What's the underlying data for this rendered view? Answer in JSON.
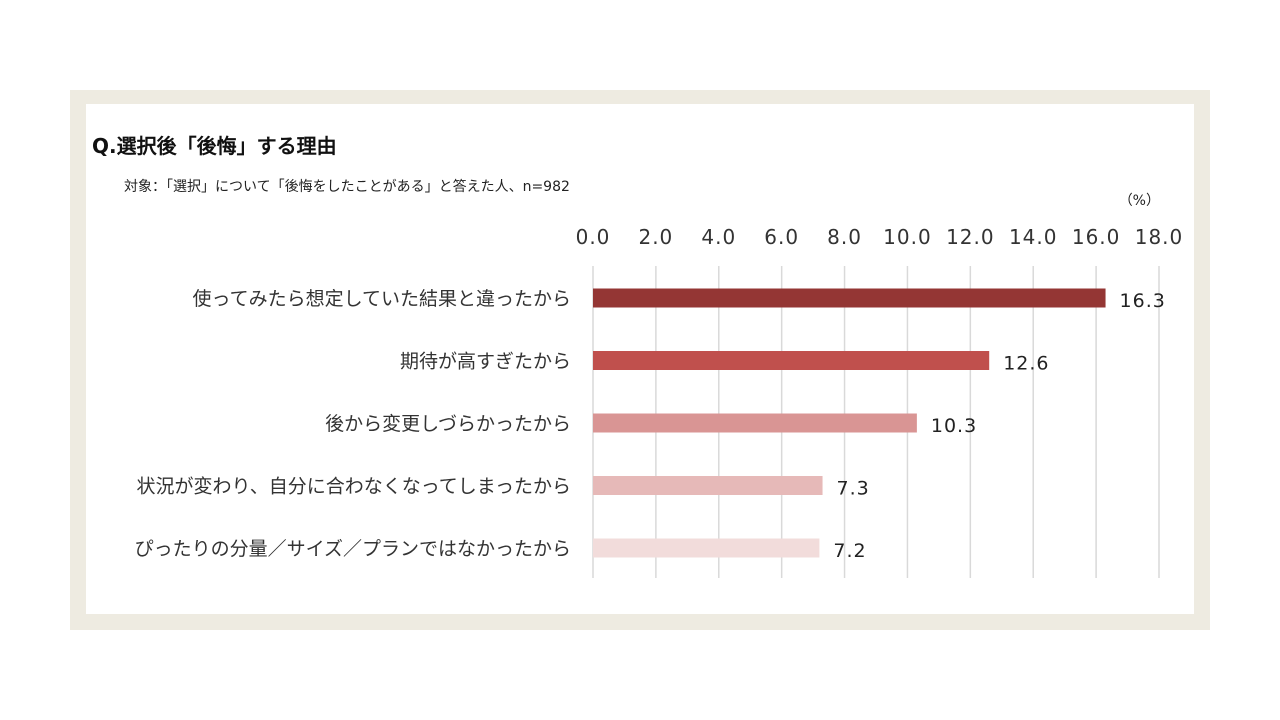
{
  "chart_data": {
    "type": "bar",
    "orientation": "horizontal",
    "title": "Q.選択後「後悔」する理由",
    "subtitle": "対象：「選択」について「後悔をしたことがある」と答えた人、n=982",
    "unit_label": "（%）",
    "categories": [
      "使ってみたら想定していた結果と違ったから",
      "期待が高すぎたから",
      "後から変更しづらかったから",
      "状況が変わり、自分に合わなくなってしまったから",
      "ぴったりの分量／サイズ／プランではなかったから"
    ],
    "values": [
      16.3,
      12.6,
      10.3,
      7.3,
      7.2
    ],
    "value_labels": [
      "16.3",
      "12.6",
      "10.3",
      "7.3",
      "7.2"
    ],
    "xlim": [
      0,
      18
    ],
    "ticks": [
      "0.0",
      "2.0",
      "4.0",
      "6.0",
      "8.0",
      "10.0",
      "12.0",
      "14.0",
      "16.0",
      "18.0"
    ],
    "tick_values": [
      0,
      2,
      4,
      6,
      8,
      10,
      12,
      14,
      16,
      18
    ],
    "bar_colors": [
      "#943634",
      "#c0504d",
      "#d99594",
      "#e6b9b8",
      "#f2dcdb"
    ],
    "grid": true,
    "axis_position": "top"
  },
  "colors": {
    "frame": "#eeebe1",
    "grid": "#d9d9d9"
  }
}
